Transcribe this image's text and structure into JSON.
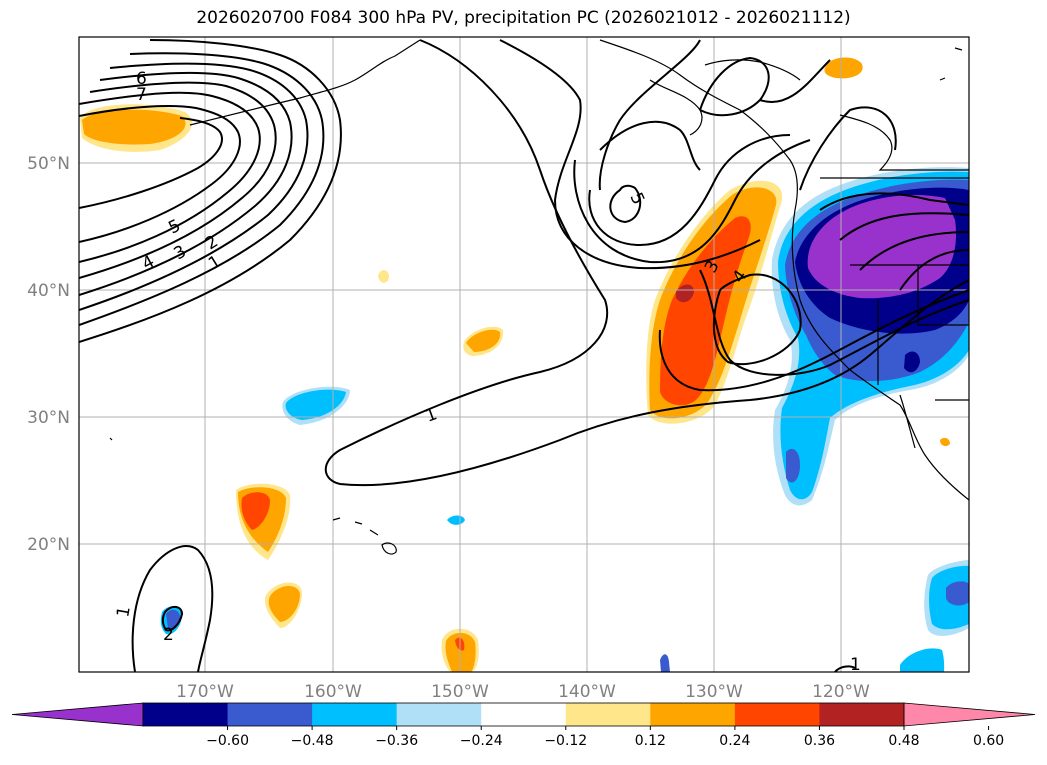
{
  "title": "2026020700 F084 300 hPa PV, precipitation PC (2026021012 - 2026021112)",
  "map": {
    "lon_range": [
      -180,
      -110
    ],
    "lat_range": [
      10,
      60
    ],
    "lon_labels": [
      "170°W",
      "160°W",
      "150°W",
      "140°W",
      "130°W",
      "120°W"
    ],
    "lat_labels": [
      "50°N",
      "40°N",
      "30°N",
      "20°N"
    ],
    "grid": true,
    "label_color": "#808080"
  },
  "pv_contour_labels": [
    "1",
    "2",
    "3",
    "4",
    "5",
    "6",
    "7",
    "1",
    "3",
    "4",
    "5",
    "1",
    "1",
    "2"
  ],
  "colorbar": {
    "extend": "both",
    "ticks": [
      "−0.60",
      "−0.48",
      "−0.36",
      "−0.24",
      "−0.12",
      "0.12",
      "0.24",
      "0.36",
      "0.48",
      "0.60"
    ],
    "colors": [
      "#9932cc",
      "#00008b",
      "#3a5bcf",
      "#00bfff",
      "#b0e0f7",
      "#ffffff",
      "#ffe68a",
      "#ffa500",
      "#ff4500",
      "#b22222",
      "#ff88aa"
    ]
  }
}
